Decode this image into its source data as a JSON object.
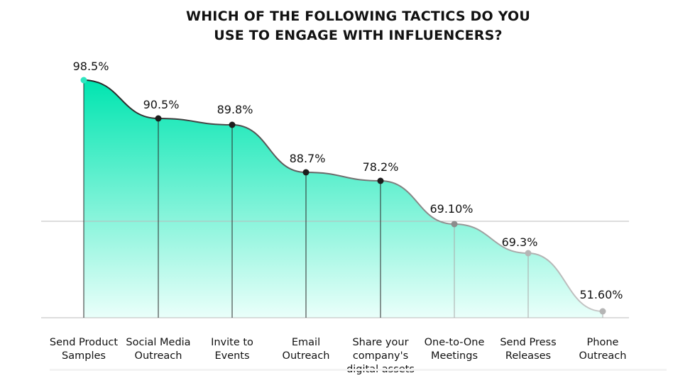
{
  "chart_data": {
    "type": "area",
    "title_lines": [
      "WHICH OF THE FOLLOWING TACTICS DO YOU",
      "USE TO ENGAGE WITH INFLUENCERS?"
    ],
    "categories": [
      [
        "Send Product",
        "Samples"
      ],
      [
        "Social Media",
        "Outreach"
      ],
      [
        "Invite to",
        "Events"
      ],
      [
        "Email",
        "Outreach"
      ],
      [
        "Share your",
        "company's",
        "digital assets"
      ],
      [
        "One-to-One",
        "Meetings"
      ],
      [
        "Send Press",
        "Releases"
      ],
      [
        "Phone",
        "Outreach"
      ]
    ],
    "data_labels": [
      "98.5%",
      "90.5%",
      "89.8%",
      "88.7%",
      "78.2%",
      "69.10%",
      "69.3%",
      "51.60%"
    ],
    "values": [
      98.5,
      90.5,
      89.8,
      88.7,
      78.2,
      69.1,
      69.3,
      51.6
    ],
    "grid": true,
    "legend": "none",
    "colors": {
      "fill_top": "#00e5b0",
      "fill_bottom": "#eafffa",
      "line_start": "#222222",
      "line_end": "#c9c9c9",
      "marker_first": "#2ee6c0",
      "marker_dark": "#1d1d1d",
      "marker_light": "#b5b5b5",
      "axis": "#555555",
      "grid": "#bbbbbb",
      "label": "#111111"
    }
  }
}
